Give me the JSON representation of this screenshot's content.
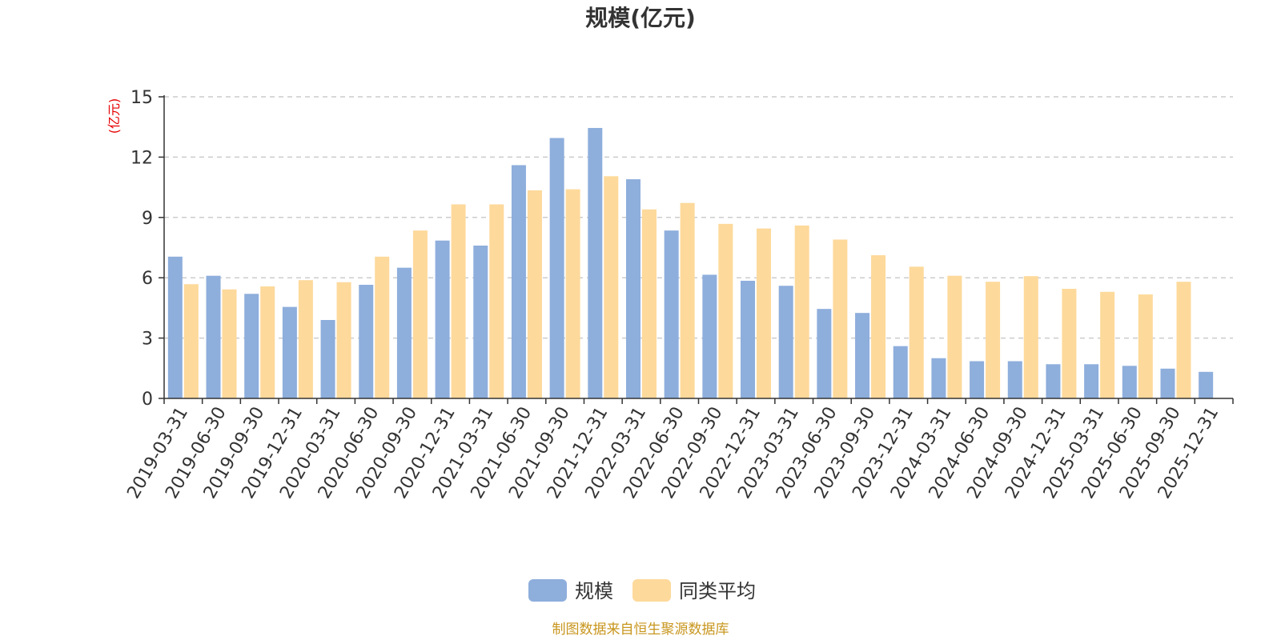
{
  "chart_data": {
    "type": "bar",
    "title": "规模(亿元)",
    "ylabel": "(亿元)",
    "ylim": [
      0,
      15
    ],
    "yticks": [
      "0",
      "3",
      "6",
      "9",
      "12",
      "15"
    ],
    "grid": "horizontal dashed",
    "legend_position": "bottom-center",
    "categories": [
      "2019-03-31",
      "2019-06-30",
      "2019-09-30",
      "2019-12-31",
      "2020-03-31",
      "2020-06-30",
      "2020-09-30",
      "2020-12-31",
      "2021-03-31",
      "2021-06-30",
      "2021-09-30",
      "2021-12-31",
      "2022-03-31",
      "2022-06-30",
      "2022-09-30",
      "2022-12-31",
      "2023-03-31",
      "2023-06-30",
      "2023-09-30",
      "2023-12-31",
      "2024-03-31",
      "2024-06-30",
      "2024-09-30",
      "2024-12-31",
      "2025-03-31",
      "2025-06-30",
      "2025-09-30",
      "2025-12-31"
    ],
    "series": [
      {
        "name": "规模",
        "color": "#8eaedc",
        "values": [
          7.05,
          6.1,
          5.2,
          4.55,
          3.9,
          5.65,
          6.5,
          7.85,
          7.6,
          11.6,
          12.95,
          13.45,
          10.9,
          8.35,
          6.15,
          5.85,
          5.6,
          4.45,
          4.25,
          2.6,
          2.0,
          1.85,
          1.85,
          1.7,
          1.7,
          1.62,
          1.48,
          1.32
        ]
      },
      {
        "name": "同类平均",
        "color": "#fdd99b",
        "values": [
          5.68,
          5.42,
          5.57,
          5.88,
          5.78,
          7.05,
          8.35,
          9.65,
          9.65,
          10.35,
          10.4,
          11.05,
          9.4,
          9.72,
          8.68,
          8.45,
          8.6,
          7.9,
          7.12,
          6.55,
          6.1,
          5.8,
          6.08,
          5.45,
          5.3,
          5.17,
          5.8,
          null
        ]
      }
    ]
  },
  "source_text": "制图数据来自恒生聚源数据库"
}
